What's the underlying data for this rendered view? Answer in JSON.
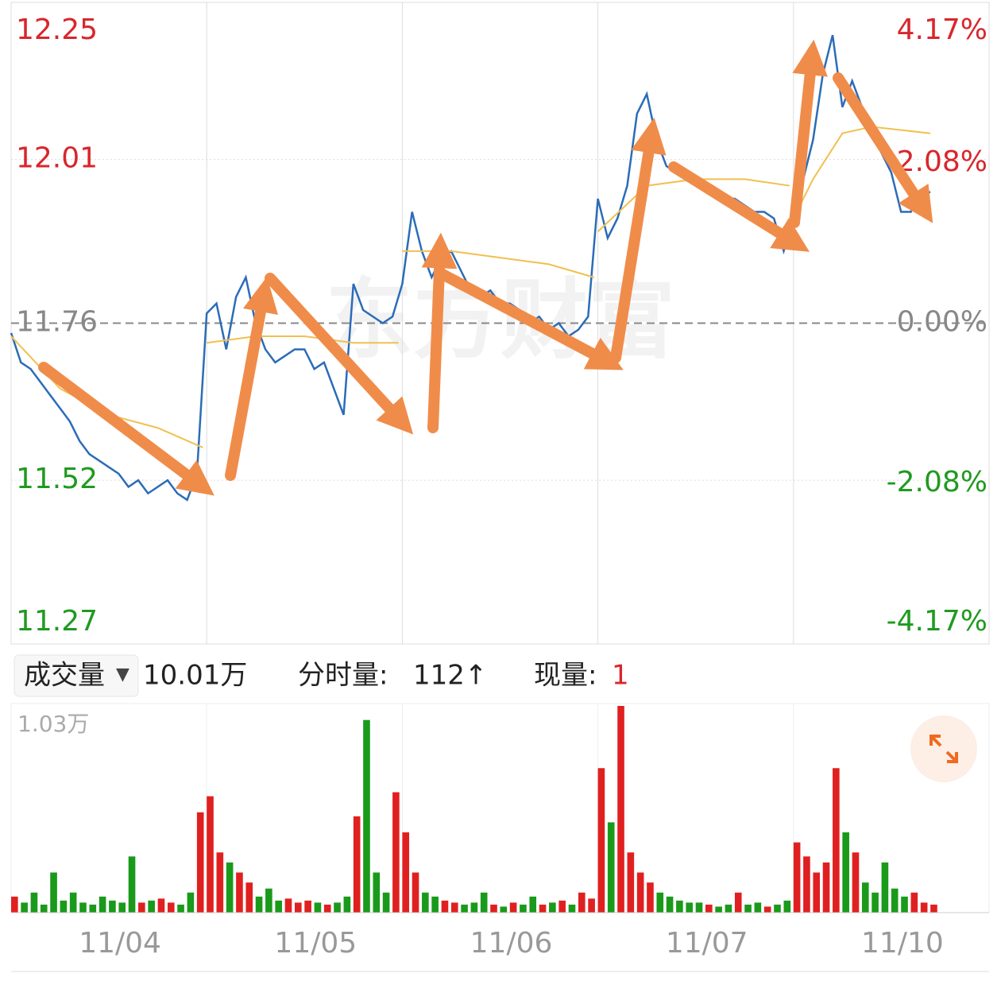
{
  "chart_data": [
    {
      "type": "line",
      "watermark": "东方财富",
      "xlim": [
        0,
        5
      ],
      "ylim": [
        11.27,
        12.25
      ],
      "yticks": [
        11.27,
        11.52,
        11.76,
        12.01,
        12.25
      ],
      "y2lim": [
        -4.17,
        4.17
      ],
      "y2ticks": [
        {
          "value": -4.17,
          "label": "-4.17%"
        },
        {
          "value": -2.08,
          "label": "-2.08%"
        },
        {
          "value": 0,
          "label": "0.00%"
        },
        {
          "value": 2.08,
          "label": "2.08%"
        },
        {
          "value": 4.17,
          "label": "4.17%"
        }
      ],
      "tick_colors": {
        "up": "#d9262b",
        "down": "#1f9a1f",
        "flat": "#888888"
      },
      "grid": true,
      "series": [
        {
          "color": "#2b6cb8",
          "x": [
            0,
            0.05,
            0.1,
            0.15,
            0.2,
            0.25,
            0.3,
            0.35,
            0.4,
            0.45,
            0.5,
            0.55,
            0.6,
            0.65,
            0.7,
            0.75,
            0.8,
            0.85,
            0.9,
            0.95,
            1,
            1.05,
            1.1,
            1.15,
            1.2,
            1.25,
            1.3,
            1.35,
            1.4,
            1.45,
            1.5,
            1.55,
            1.6,
            1.65,
            1.7,
            1.75,
            1.8,
            1.85,
            1.9,
            1.95,
            2,
            2.05,
            2.1,
            2.15,
            2.2,
            2.25,
            2.3,
            2.35,
            2.4,
            2.45,
            2.5,
            2.55,
            2.6,
            2.65,
            2.7,
            2.75,
            2.8,
            2.85,
            2.9,
            2.95,
            3,
            3.05,
            3.1,
            3.15,
            3.2,
            3.25,
            3.3,
            3.35,
            3.4,
            3.45,
            3.5,
            3.55,
            3.6,
            3.65,
            3.7,
            3.75,
            3.8,
            3.85,
            3.9,
            3.95,
            4,
            4.05,
            4.1,
            4.15,
            4.2,
            4.25,
            4.3,
            4.35,
            4.4,
            4.45,
            4.5,
            4.55,
            4.6,
            4.65,
            4.7
          ],
          "values": [
            11.745,
            11.7,
            11.69,
            11.67,
            11.65,
            11.63,
            11.61,
            11.58,
            11.56,
            11.55,
            11.54,
            11.53,
            11.51,
            11.52,
            11.5,
            11.51,
            11.52,
            11.5,
            11.49,
            11.53,
            11.775,
            11.79,
            11.72,
            11.8,
            11.83,
            11.76,
            11.72,
            11.7,
            11.71,
            11.72,
            11.72,
            11.69,
            11.7,
            11.66,
            11.62,
            11.82,
            11.78,
            11.77,
            11.76,
            11.77,
            11.82,
            11.93,
            11.87,
            11.83,
            11.86,
            11.87,
            11.84,
            11.81,
            11.8,
            11.81,
            11.79,
            11.79,
            11.78,
            11.76,
            11.77,
            11.75,
            11.76,
            11.74,
            11.75,
            11.77,
            11.95,
            11.89,
            11.92,
            11.97,
            12.08,
            12.11,
            12.04,
            12,
            11.99,
            11.98,
            11.97,
            11.97,
            11.96,
            11.95,
            11.95,
            11.94,
            11.93,
            11.93,
            11.92,
            11.87,
            11.92,
            11.98,
            12.04,
            12.14,
            12.2,
            12.09,
            12.13,
            12.09,
            12.05,
            12.02,
            11.99,
            11.93,
            11.93,
            11.96,
            11.96
          ]
        },
        {
          "color": "#f0c050",
          "x": [
            0,
            0.25,
            0.5,
            0.75,
            0.98,
            1,
            1,
            1.25,
            1.5,
            1.75,
            1.98,
            2,
            2,
            2.25,
            2.5,
            2.75,
            2.98,
            3,
            3,
            3.25,
            3.5,
            3.75,
            3.98,
            4,
            4,
            4.1,
            4.25,
            4.4,
            4.7
          ],
          "values": [
            11.74,
            11.66,
            11.62,
            11.6,
            11.57,
            null,
            11.73,
            11.74,
            11.74,
            11.73,
            11.73,
            null,
            11.87,
            11.87,
            11.86,
            11.85,
            11.83,
            null,
            11.9,
            11.97,
            11.98,
            11.98,
            11.97,
            null,
            11.92,
            11.98,
            12.05,
            12.06,
            12.05
          ]
        }
      ]
    },
    {
      "type": "bar",
      "value_axis_label": {
        "value": 1.03,
        "label": "1.03万"
      },
      "xlim": [
        0,
        5
      ],
      "ylim": [
        0,
        1.03
      ],
      "categories": [
        "11/04",
        "11/05",
        "11/06",
        "11/07",
        "11/10"
      ],
      "colors": {
        "up": "#e02020",
        "down": "#1a9a1a"
      },
      "x": [
        0,
        0.05,
        0.1,
        0.15,
        0.2,
        0.25,
        0.3,
        0.35,
        0.4,
        0.45,
        0.5,
        0.55,
        0.6,
        0.65,
        0.7,
        0.75,
        0.8,
        0.85,
        0.9,
        0.95,
        1,
        1.05,
        1.1,
        1.15,
        1.2,
        1.25,
        1.3,
        1.35,
        1.4,
        1.45,
        1.5,
        1.55,
        1.6,
        1.65,
        1.7,
        1.75,
        1.8,
        1.85,
        1.9,
        1.95,
        2,
        2.05,
        2.1,
        2.15,
        2.2,
        2.25,
        2.3,
        2.35,
        2.4,
        2.45,
        2.5,
        2.55,
        2.6,
        2.65,
        2.7,
        2.75,
        2.8,
        2.85,
        2.9,
        2.95,
        3,
        3.05,
        3.1,
        3.15,
        3.2,
        3.25,
        3.3,
        3.35,
        3.4,
        3.45,
        3.5,
        3.55,
        3.6,
        3.65,
        3.7,
        3.75,
        3.8,
        3.85,
        3.9,
        3.95,
        4,
        4.05,
        4.1,
        4.15,
        4.2,
        4.25,
        4.3,
        4.35,
        4.4,
        4.45,
        4.5,
        4.55,
        4.6,
        4.65,
        4.7
      ],
      "values": [
        0.08,
        0.05,
        0.1,
        0.04,
        0.2,
        0.06,
        0.1,
        0.05,
        0.04,
        0.08,
        0.06,
        0.05,
        0.28,
        0.05,
        0.06,
        0.07,
        0.05,
        0.04,
        0.1,
        0.5,
        0.58,
        0.3,
        0.25,
        0.2,
        0.15,
        0.08,
        0.12,
        0.06,
        0.07,
        0.05,
        0.06,
        0.05,
        0.04,
        0.05,
        0.08,
        0.48,
        0.96,
        0.2,
        0.1,
        0.6,
        0.4,
        0.2,
        0.1,
        0.08,
        0.06,
        0.05,
        0.04,
        0.05,
        0.1,
        0.04,
        0.03,
        0.05,
        0.04,
        0.08,
        0.04,
        0.05,
        0.06,
        0.04,
        0.1,
        0.07,
        0.72,
        0.45,
        1.03,
        0.3,
        0.2,
        0.15,
        0.1,
        0.08,
        0.06,
        0.05,
        0.05,
        0.04,
        0.03,
        0.04,
        0.1,
        0.04,
        0.05,
        0.03,
        0.04,
        0.06,
        0.35,
        0.28,
        0.2,
        0.25,
        0.72,
        0.4,
        0.3,
        0.15,
        0.1,
        0.25,
        0.12,
        0.08,
        0.1,
        0.05,
        0.04
      ]
    }
  ],
  "toolbar": {
    "volume_label": "成交量",
    "dropdown": "▼",
    "total": "10.01万",
    "minute_label": "分时量:",
    "minute_value": "112↑",
    "current_label": "现量:",
    "current_value": "1"
  }
}
